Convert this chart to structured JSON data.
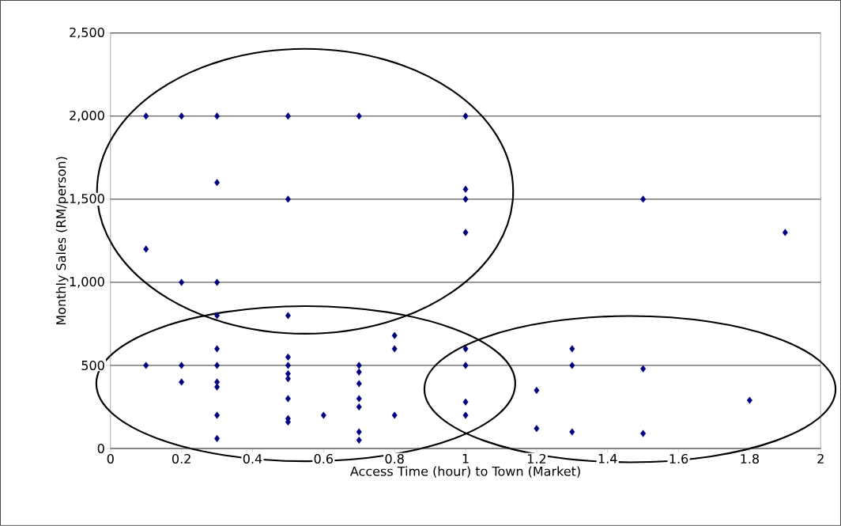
{
  "chart_data": {
    "type": "scatter",
    "xlabel": "Access Time (hour) to Town (Market)",
    "ylabel": "Monthly Sales (RM/person)",
    "x": [
      0.1,
      0.1,
      0.1,
      0.2,
      0.2,
      0.2,
      0.2,
      0.3,
      0.3,
      0.3,
      0.3,
      0.3,
      0.3,
      0.3,
      0.3,
      0.3,
      0.3,
      0.5,
      0.5,
      0.5,
      0.5,
      0.5,
      0.5,
      0.5,
      0.5,
      0.5,
      0.5,
      0.6,
      0.7,
      0.7,
      0.7,
      0.7,
      0.7,
      0.7,
      0.7,
      0.7,
      0.8,
      0.8,
      0.8,
      1,
      1,
      1,
      1,
      1,
      1,
      1,
      1,
      1.2,
      1.2,
      1.3,
      1.3,
      1.3,
      1.5,
      1.5,
      1.5,
      1.8,
      1.9
    ],
    "values": [
      2000,
      1200,
      500,
      2000,
      1000,
      500,
      400,
      2000,
      1600,
      1000,
      800,
      600,
      500,
      400,
      370,
      200,
      60,
      2000,
      1500,
      800,
      550,
      500,
      450,
      420,
      300,
      180,
      160,
      200,
      2000,
      500,
      460,
      390,
      300,
      250,
      100,
      50,
      680,
      600,
      200,
      2000,
      1560,
      1500,
      1300,
      600,
      500,
      280,
      200,
      350,
      120,
      600,
      500,
      100,
      1500,
      480,
      90,
      290,
      1300
    ],
    "color": "#000080",
    "marker": "diamond",
    "grid": "y",
    "xlim": [
      0,
      2
    ],
    "ylim": [
      0,
      2500
    ],
    "xticks": [
      0,
      0.2,
      0.4,
      0.6,
      0.8,
      1,
      1.2,
      1.4,
      1.6,
      1.8,
      2
    ],
    "yticks": [
      0,
      500,
      {
        "value": 1000,
        "label": "1,000"
      },
      {
        "value": 1500,
        "label": "1,500"
      },
      {
        "value": 2000,
        "label": "2,000"
      },
      {
        "value": 2500,
        "label": "2,500"
      }
    ]
  }
}
